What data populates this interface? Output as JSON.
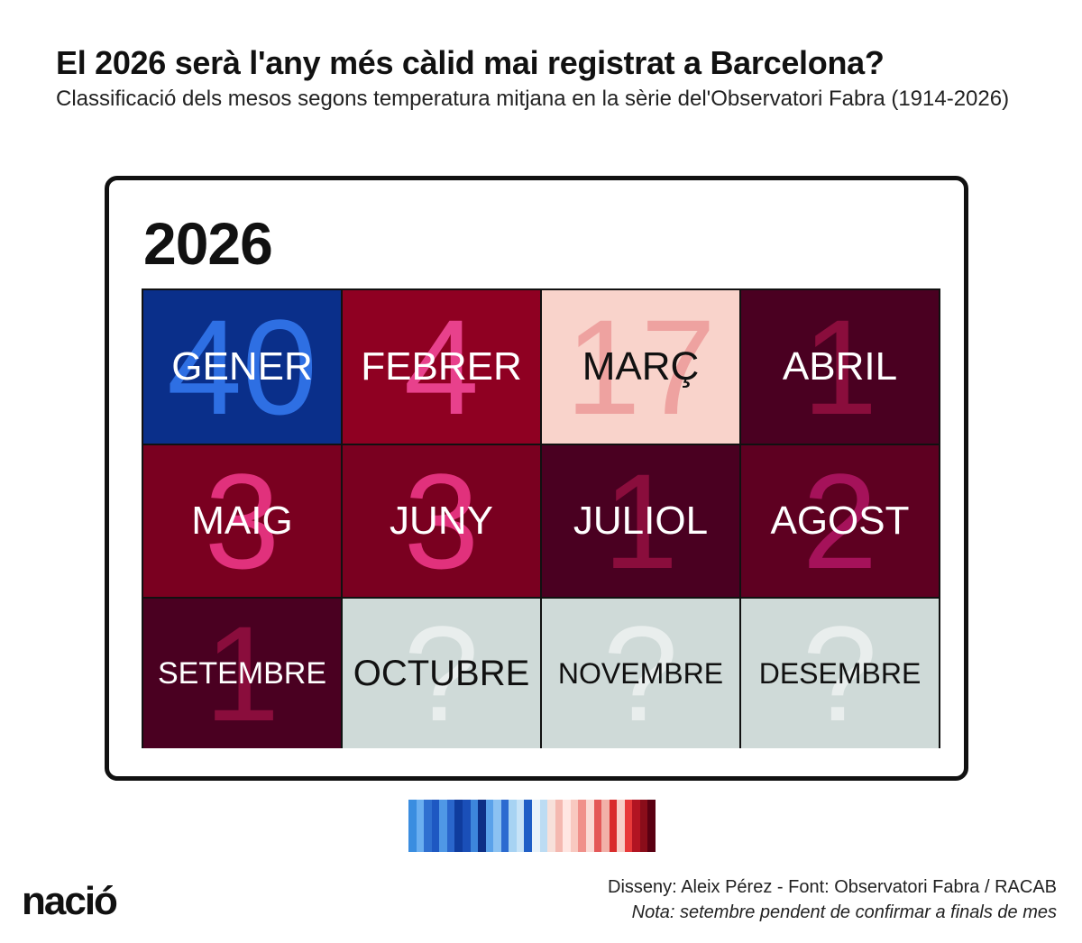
{
  "header": {
    "title": "El 2026 serà l'any més càlid mai registrat a Barcelona?",
    "subtitle": "Classificació dels mesos segons temperatura mitjana en la sèrie del'Observatori Fabra (1914-2026)"
  },
  "card": {
    "year": "2026",
    "months": [
      {
        "name": "GENER",
        "rank": "40",
        "bg": "#0a2f8a",
        "rank_color": "#2e6fe3",
        "text_color": "#ffffff",
        "size": 44
      },
      {
        "name": "FEBRER",
        "rank": "4",
        "bg": "#8f0022",
        "rank_color": "#e8418c",
        "text_color": "#ffffff",
        "size": 44
      },
      {
        "name": "MARÇ",
        "rank": "17",
        "bg": "#f9d3cb",
        "rank_color": "#eea2a0",
        "text_color": "#111111",
        "size": 44
      },
      {
        "name": "ABRIL",
        "rank": "1",
        "bg": "#4a0021",
        "rank_color": "#8a0d3c",
        "text_color": "#ffffff",
        "size": 44
      },
      {
        "name": "MAIG",
        "rank": "3",
        "bg": "#7a0020",
        "rank_color": "#e1317c",
        "text_color": "#ffffff",
        "size": 44
      },
      {
        "name": "JUNY",
        "rank": "3",
        "bg": "#7a0020",
        "rank_color": "#e1317c",
        "text_color": "#ffffff",
        "size": 44
      },
      {
        "name": "JULIOL",
        "rank": "1",
        "bg": "#4a0021",
        "rank_color": "#8a0d3c",
        "text_color": "#ffffff",
        "size": 44
      },
      {
        "name": "AGOST",
        "rank": "2",
        "bg": "#5e0021",
        "rank_color": "#a5125a",
        "text_color": "#ffffff",
        "size": 44
      },
      {
        "name": "SETEMBRE",
        "rank": "1",
        "bg": "#4a0021",
        "rank_color": "#8a0d3c",
        "text_color": "#ffffff",
        "size": 34
      },
      {
        "name": "OCTUBRE",
        "rank": "?",
        "bg": "#cfdad8",
        "rank_color": "#e9eeed",
        "text_color": "#111111",
        "size": 40
      },
      {
        "name": "NOVEMBRE",
        "rank": "?",
        "bg": "#cfdad8",
        "rank_color": "#e9eeed",
        "text_color": "#111111",
        "size": 32
      },
      {
        "name": "DESEMBRE",
        "rank": "?",
        "bg": "#cfdad8",
        "rank_color": "#e9eeed",
        "text_color": "#111111",
        "size": 32
      }
    ]
  },
  "legend": {
    "stripes": [
      "#3a8de0",
      "#6aaef0",
      "#2f6fd0",
      "#1e58c2",
      "#4f98e6",
      "#2a66cc",
      "#0f3c9e",
      "#1a4fb8",
      "#3d86dc",
      "#0c2f86",
      "#5aa2ea",
      "#8bc2f2",
      "#2b6ad0",
      "#a7d3f3",
      "#c7e3f7",
      "#1f5ec6",
      "#e9f3fa",
      "#bcdcf3",
      "#f7e0da",
      "#f4b8b0",
      "#ffe6e2",
      "#f8c9c0",
      "#f0908a",
      "#fadad5",
      "#e45858",
      "#f2b0a8",
      "#d92c2c",
      "#f7d0c8",
      "#e83a3a",
      "#b21422",
      "#8a0d1a",
      "#5a0012"
    ]
  },
  "footer": {
    "logo": "nació",
    "credits": "Disseny: Aleix Pérez - Font: Observatori Fabra / RACAB",
    "note": "Nota: setembre pendent de confirmar a finals de mes"
  }
}
